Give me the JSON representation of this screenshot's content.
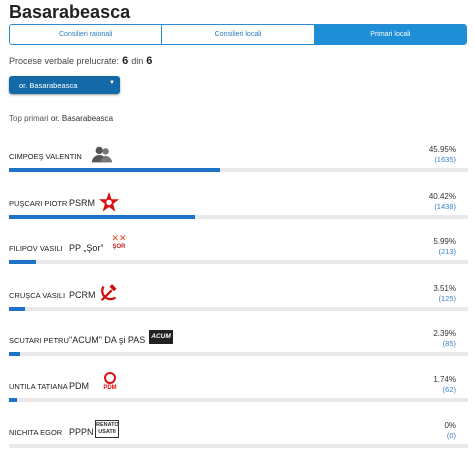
{
  "page": {
    "title": "Basarabeasca",
    "tabs": [
      {
        "label": "Consilieri raionali",
        "active": false
      },
      {
        "label": "Consilieri locali",
        "active": false
      },
      {
        "label": "Primari locali",
        "active": true
      }
    ],
    "processed_label": "Procese verbale prelucrate:",
    "processed_count": "6",
    "processed_sep": "din",
    "processed_total": "6",
    "select_value": "or. Basarabeasca",
    "top_label_prefix": "Top primari",
    "top_label_place": "or. Basarabeasca"
  },
  "candidates": [
    {
      "name": "CIMPOEŞ VALENTIN",
      "party": "",
      "logo": "person-silhouette-icon",
      "pct": "45.95%",
      "votes": "(1635)",
      "share": 0.4595
    },
    {
      "name": "PUŞCARI PIOTR",
      "party": "PSRM",
      "logo": "psrm-star-icon",
      "pct": "40.42%",
      "votes": "(1438)",
      "share": 0.4042
    },
    {
      "name": "FILIPOV VASILI",
      "party": "PP „Şor”",
      "logo": "sor-party-logo",
      "logo_text": "ŞOR",
      "pct": "5.99%",
      "votes": "(213)",
      "share": 0.0599
    },
    {
      "name": "CRUŞCA VASILI",
      "party": "PCRM",
      "logo": "hammer-sickle-icon",
      "pct": "3.51%",
      "votes": "(125)",
      "share": 0.0351
    },
    {
      "name": "SCUTARI PETRU",
      "party": "\"ACUM\" DA şi PAS",
      "logo": "acum-logo",
      "logo_text": "ACUM",
      "pct": "2.39%",
      "votes": "(85)",
      "share": 0.0239
    },
    {
      "name": "UNTILA TATIANA",
      "party": "PDM",
      "logo": "pdm-logo",
      "logo_text": "PDM",
      "pct": "1.74%",
      "votes": "(62)",
      "share": 0.0174
    },
    {
      "name": "NICHITA EGOR",
      "party": "PPPN",
      "logo": "renato-usatii-logo",
      "logo_text": "RENATO USATII",
      "pct": "0%",
      "votes": "(0)",
      "share": 0.0
    }
  ],
  "colors": {
    "accent": "#1e8fd6",
    "bar": "#1e73c8",
    "select": "#146aa6",
    "track": "#e9e9e9"
  }
}
